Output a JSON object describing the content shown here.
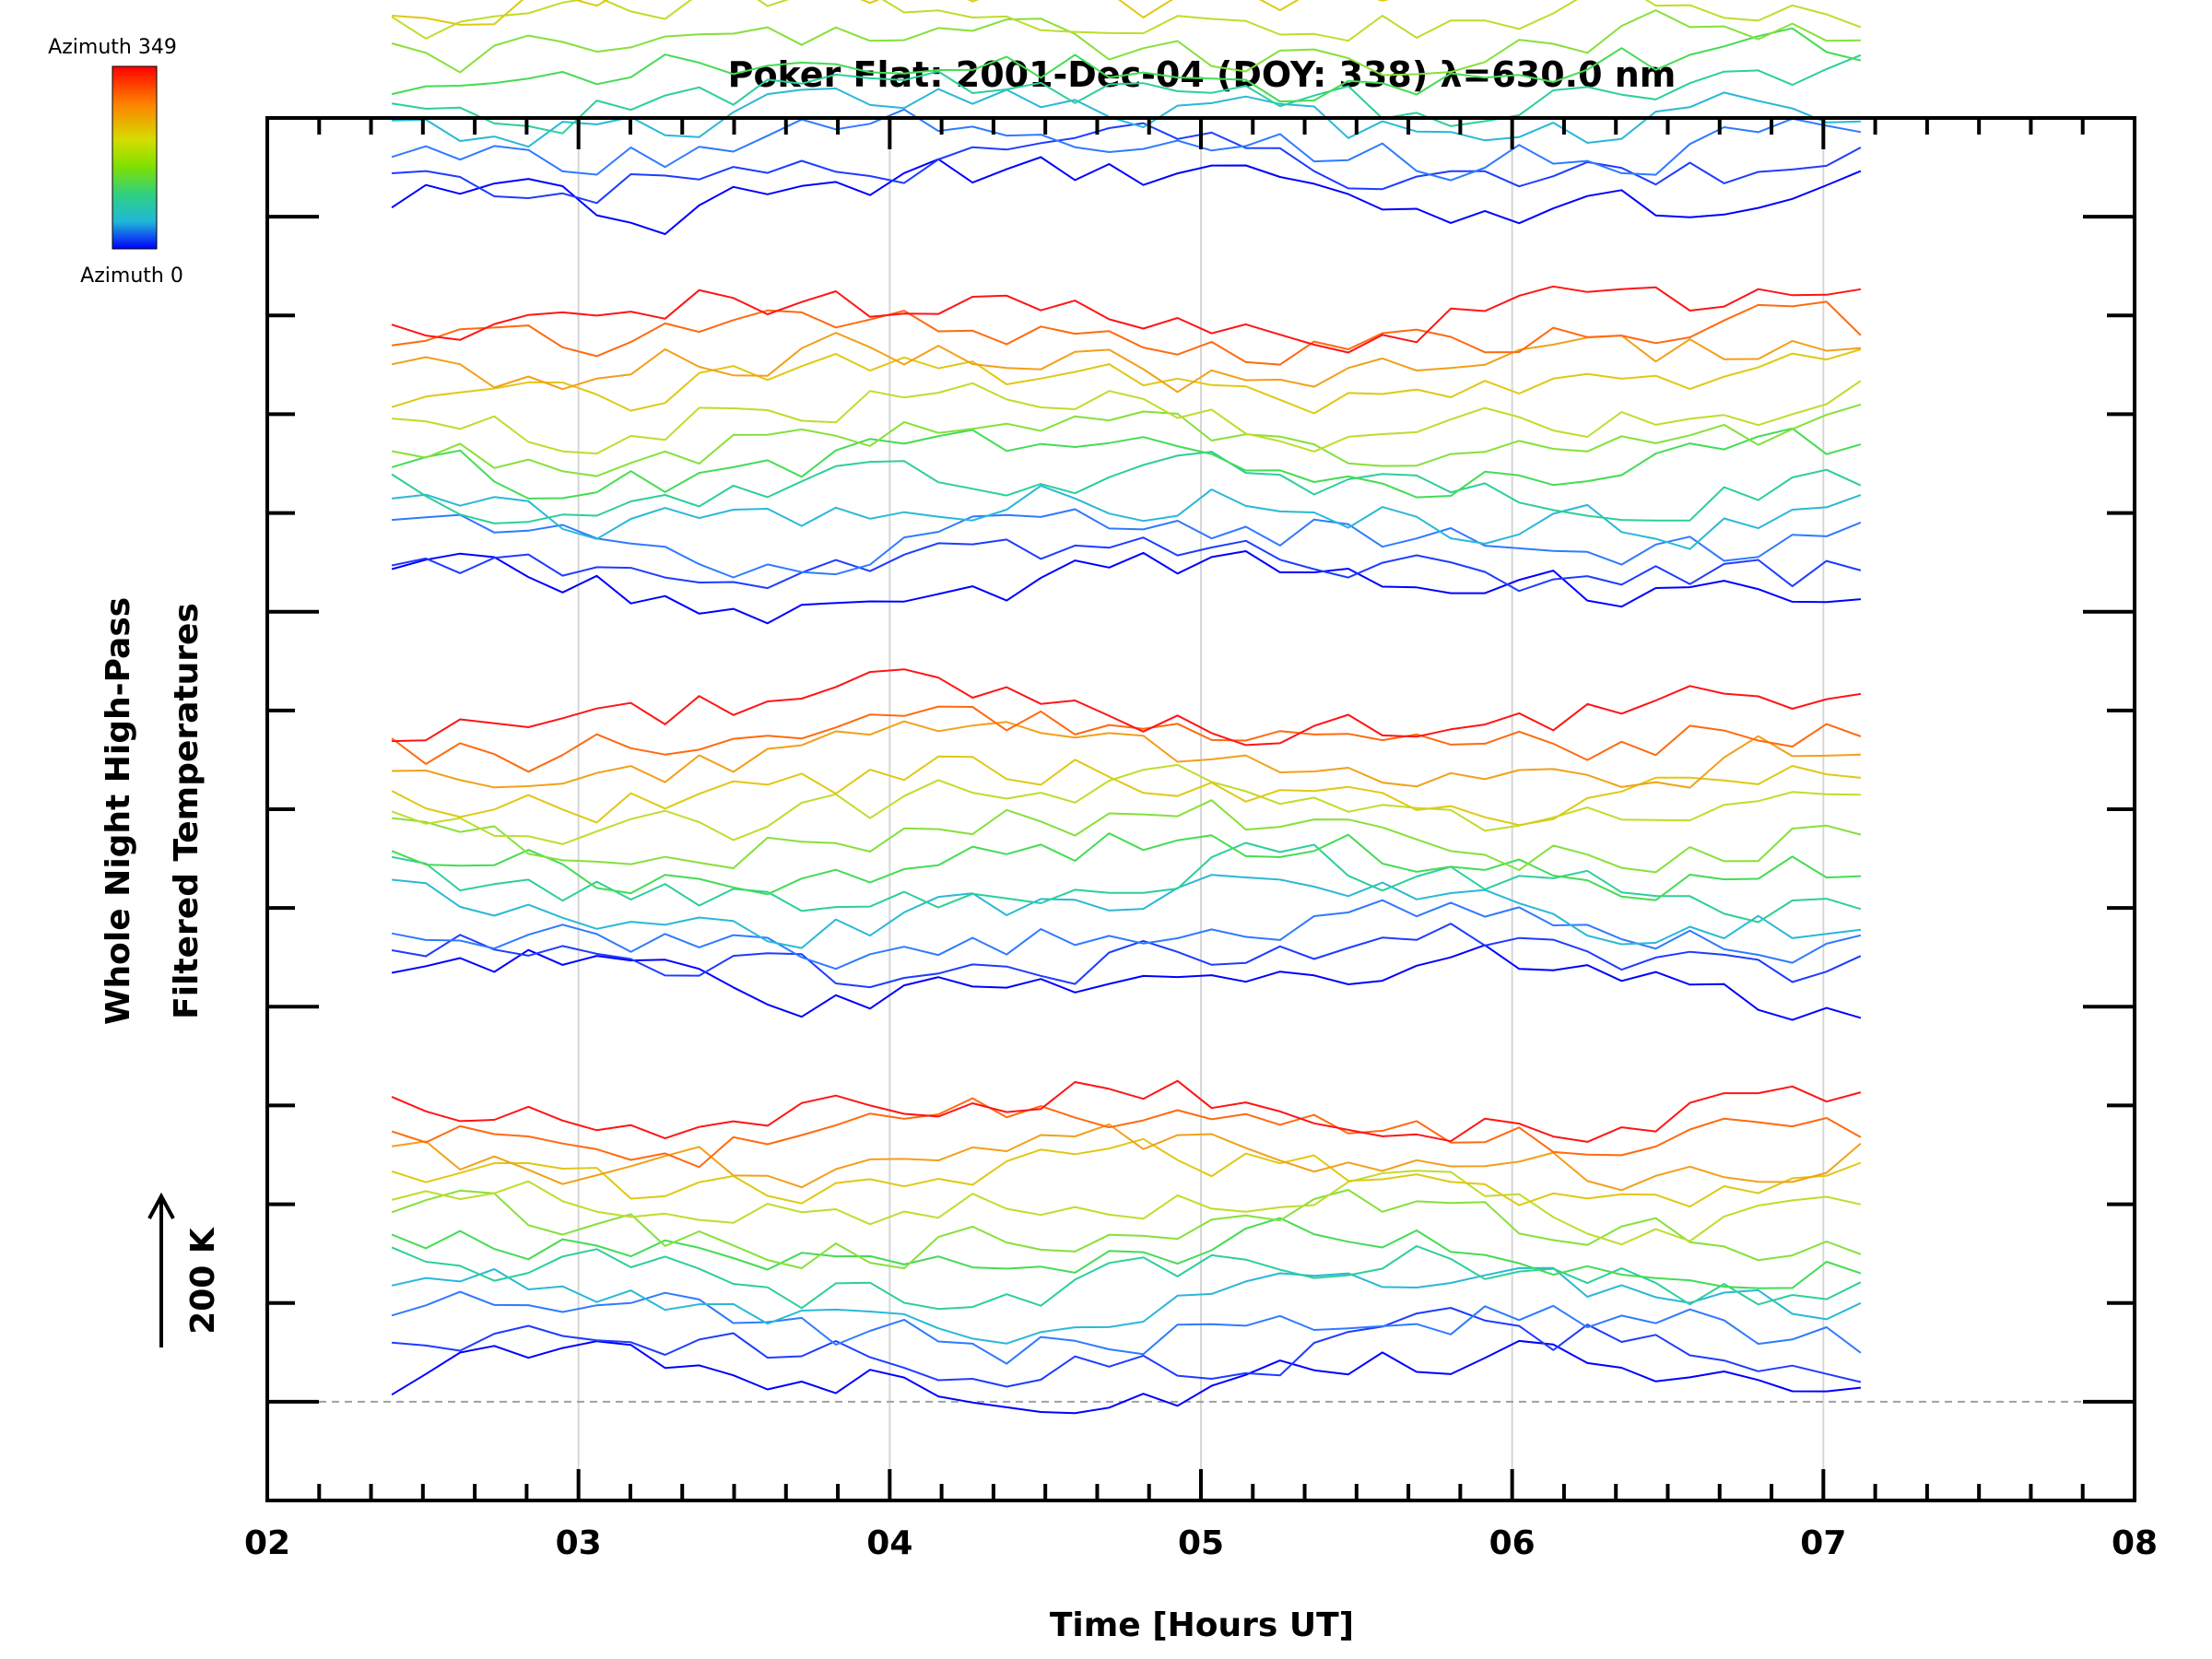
{
  "chart_data": {
    "type": "line",
    "title": "Poker Flat: 2001-Dec-04 (DOY: 338) λ=630.0 nm",
    "xlabel": "Time [Hours UT]",
    "ylabel_line1": "Whole Night High-Pass",
    "ylabel_line2": "Filtered Temperatures",
    "scale_label": "200 K",
    "xlim": [
      2,
      8
    ],
    "x_ticks": [
      "02",
      "03",
      "04",
      "05",
      "06",
      "07",
      "08"
    ],
    "x_grid_at": [
      3,
      4,
      5,
      6,
      7
    ],
    "ylim": [
      -1,
      13
    ],
    "y_major_ticks": [
      0,
      4,
      8,
      12
    ],
    "y_tick_labels_shown": false,
    "reference_line_y": 0,
    "t_start": 2.4,
    "t_end": 7.12,
    "n_samples": 44,
    "n_azimuths": 12,
    "n_stacks": 4,
    "stack_spacing": 4,
    "azimuth_spacing": 0.25,
    "amplitude": 0.35,
    "colorbar": {
      "top_label": "Azimuth 349",
      "bottom_label": "Azimuth 0",
      "colors": [
        "#ff0000",
        "#ff7f00",
        "#d6dc00",
        "#7fe000",
        "#30d080",
        "#20b8d8",
        "#0000ff"
      ]
    },
    "palette": [
      "#0000ff",
      "#1e3cff",
      "#2f7aff",
      "#2ab8d8",
      "#2ccf9a",
      "#44dc54",
      "#86e03a",
      "#c0dc2c",
      "#e0c814",
      "#f2a01a",
      "#ff6a10",
      "#ff1414"
    ]
  }
}
